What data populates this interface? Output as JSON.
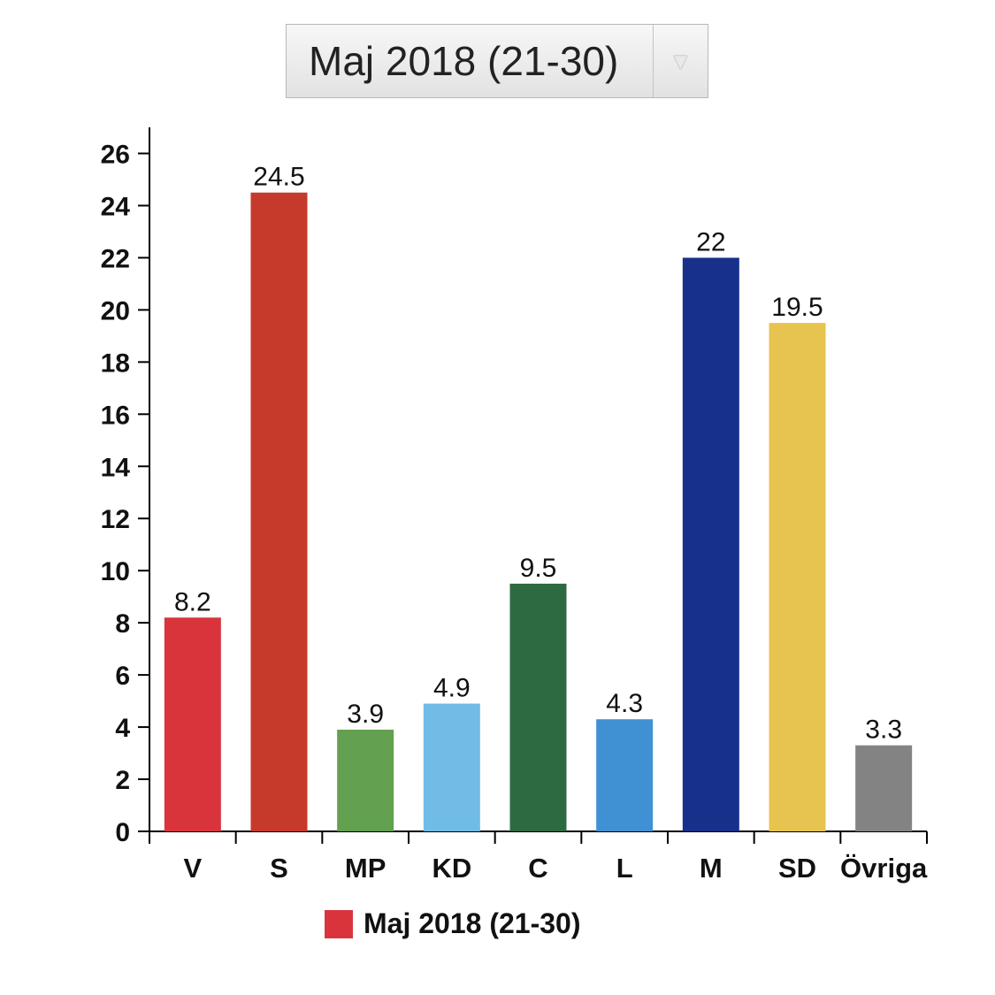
{
  "period_select": {
    "selected": "Maj 2018 (21-30)",
    "arrow_icon": "chevron-down-icon"
  },
  "chart_data": {
    "type": "bar",
    "categories": [
      "V",
      "S",
      "MP",
      "KD",
      "C",
      "L",
      "M",
      "SD",
      "Övriga"
    ],
    "series": [
      {
        "name": "Maj 2018 (21-30)",
        "values": [
          8.2,
          24.5,
          3.9,
          4.9,
          9.5,
          4.3,
          22,
          19.5,
          3.3
        ],
        "data_labels": [
          "8.2",
          "24.5",
          "3.9",
          "4.9",
          "9.5",
          "4.3",
          "22",
          "19.5",
          "3.3"
        ]
      }
    ],
    "colors": [
      "#d9343c",
      "#c63a2b",
      "#63a04f",
      "#71bce6",
      "#2d6a41",
      "#4091d3",
      "#17318b",
      "#e6c44f",
      "#838383"
    ],
    "ylim": [
      0,
      27
    ],
    "yticks": [
      0,
      2,
      4,
      6,
      8,
      10,
      12,
      14,
      16,
      18,
      20,
      22,
      24,
      26
    ],
    "grid": false,
    "legend": {
      "position": "bottom",
      "label": "Maj 2018 (21-30)",
      "color": "#d9343c"
    }
  }
}
